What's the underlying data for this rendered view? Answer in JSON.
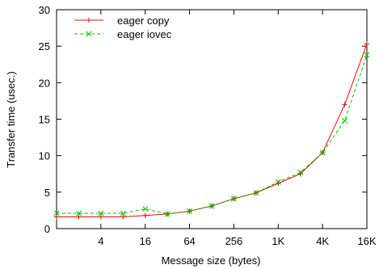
{
  "chart_data": {
    "type": "line",
    "xlabel": "Message size (bytes)",
    "ylabel": "Transfer time (usec.)",
    "x_scale": "log2",
    "xlim": [
      1,
      16384
    ],
    "ylim": [
      0,
      30
    ],
    "x_ticks": [
      {
        "value": 4,
        "label": "4"
      },
      {
        "value": 16,
        "label": "16"
      },
      {
        "value": 64,
        "label": "64"
      },
      {
        "value": 256,
        "label": "256"
      },
      {
        "value": 1024,
        "label": "1K"
      },
      {
        "value": 4096,
        "label": "4K"
      },
      {
        "value": 16384,
        "label": "16K"
      }
    ],
    "y_ticks": [
      0,
      5,
      10,
      15,
      20,
      25,
      30
    ],
    "legend_position": "top-left",
    "grid": false,
    "series": [
      {
        "name": "eager copy",
        "color": "#ff0000",
        "dash": "solid",
        "marker": "plus",
        "x": [
          1,
          2,
          4,
          8,
          16,
          32,
          64,
          128,
          256,
          512,
          1024,
          2048,
          4096,
          8192,
          16384
        ],
        "y": [
          1.6,
          1.6,
          1.6,
          1.6,
          1.8,
          2.0,
          2.4,
          3.1,
          4.1,
          4.9,
          6.2,
          7.5,
          10.4,
          17.0,
          25.3
        ]
      },
      {
        "name": "eager iovec",
        "color": "#00c000",
        "dash": "dashed",
        "marker": "cross",
        "x": [
          1,
          2,
          4,
          8,
          16,
          32,
          64,
          128,
          256,
          512,
          1024,
          2048,
          4096,
          8192,
          16384
        ],
        "y": [
          2.1,
          2.1,
          2.1,
          2.1,
          2.7,
          2.0,
          2.4,
          3.1,
          4.1,
          4.9,
          6.4,
          7.7,
          10.4,
          14.8,
          23.8
        ]
      }
    ]
  }
}
